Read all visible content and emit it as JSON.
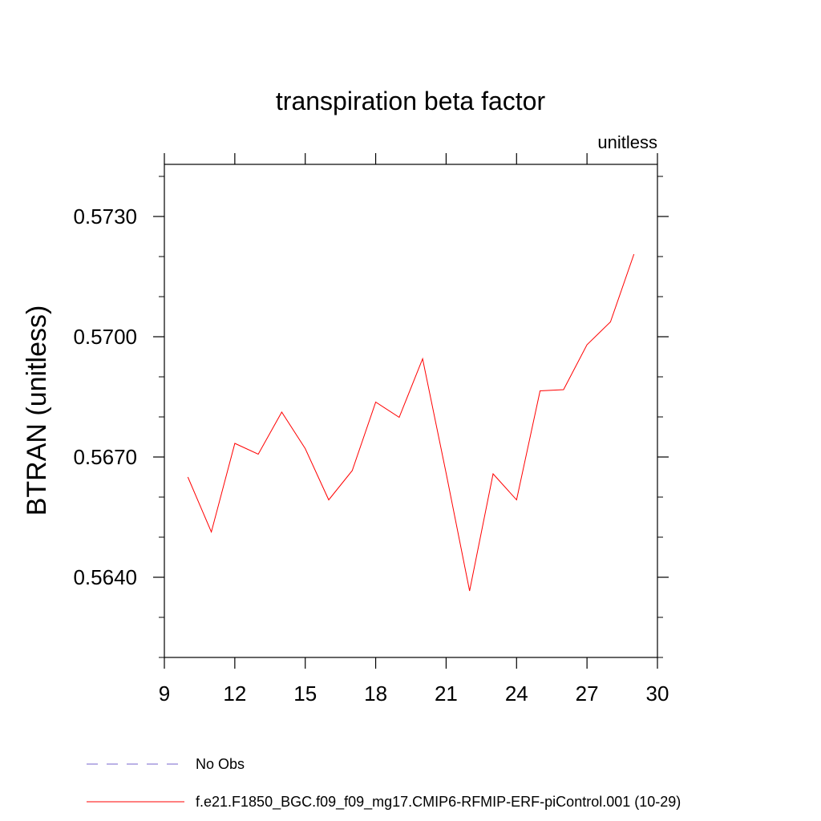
{
  "chart_data": {
    "type": "line",
    "title": "transpiration beta factor",
    "subtitle_right": "unitless",
    "xlabel": "",
    "ylabel": "BTRAN  (unitless)",
    "xlim": [
      9,
      30
    ],
    "ylim": [
      0.562,
      0.5743
    ],
    "x_ticks": [
      9,
      12,
      15,
      18,
      21,
      24,
      27,
      30
    ],
    "x_tick_labels": [
      "9",
      "12",
      "15",
      "18",
      "21",
      "24",
      "27",
      "30"
    ],
    "y_ticks": [
      0.564,
      0.567,
      0.57,
      0.573
    ],
    "y_tick_labels": [
      "0.5640",
      "0.5670",
      "0.5700",
      "0.5730"
    ],
    "grid": false,
    "legend_placement": "bottom",
    "series": [
      {
        "name": "No Obs",
        "color": "#7766cc",
        "dash": "dashed",
        "x": [],
        "y": []
      },
      {
        "name": "f.e21.F1850_BGC.f09_f09_mg17.CMIP6-RFMIP-ERF-piControl.001 (10-29)",
        "color": "#ff0000",
        "dash": "solid",
        "x": [
          10,
          11,
          12,
          13,
          14,
          15,
          16,
          17,
          18,
          19,
          20,
          21,
          22,
          23,
          24,
          25,
          26,
          27,
          28,
          29
        ],
        "y": [
          0.5665,
          0.56513,
          0.56734,
          0.56707,
          0.56812,
          0.56721,
          0.56593,
          0.56666,
          0.56837,
          0.56799,
          0.56945,
          0.5666,
          0.56366,
          0.56658,
          0.56593,
          0.56865,
          0.56868,
          0.5698,
          0.57037,
          0.57206
        ]
      }
    ]
  }
}
